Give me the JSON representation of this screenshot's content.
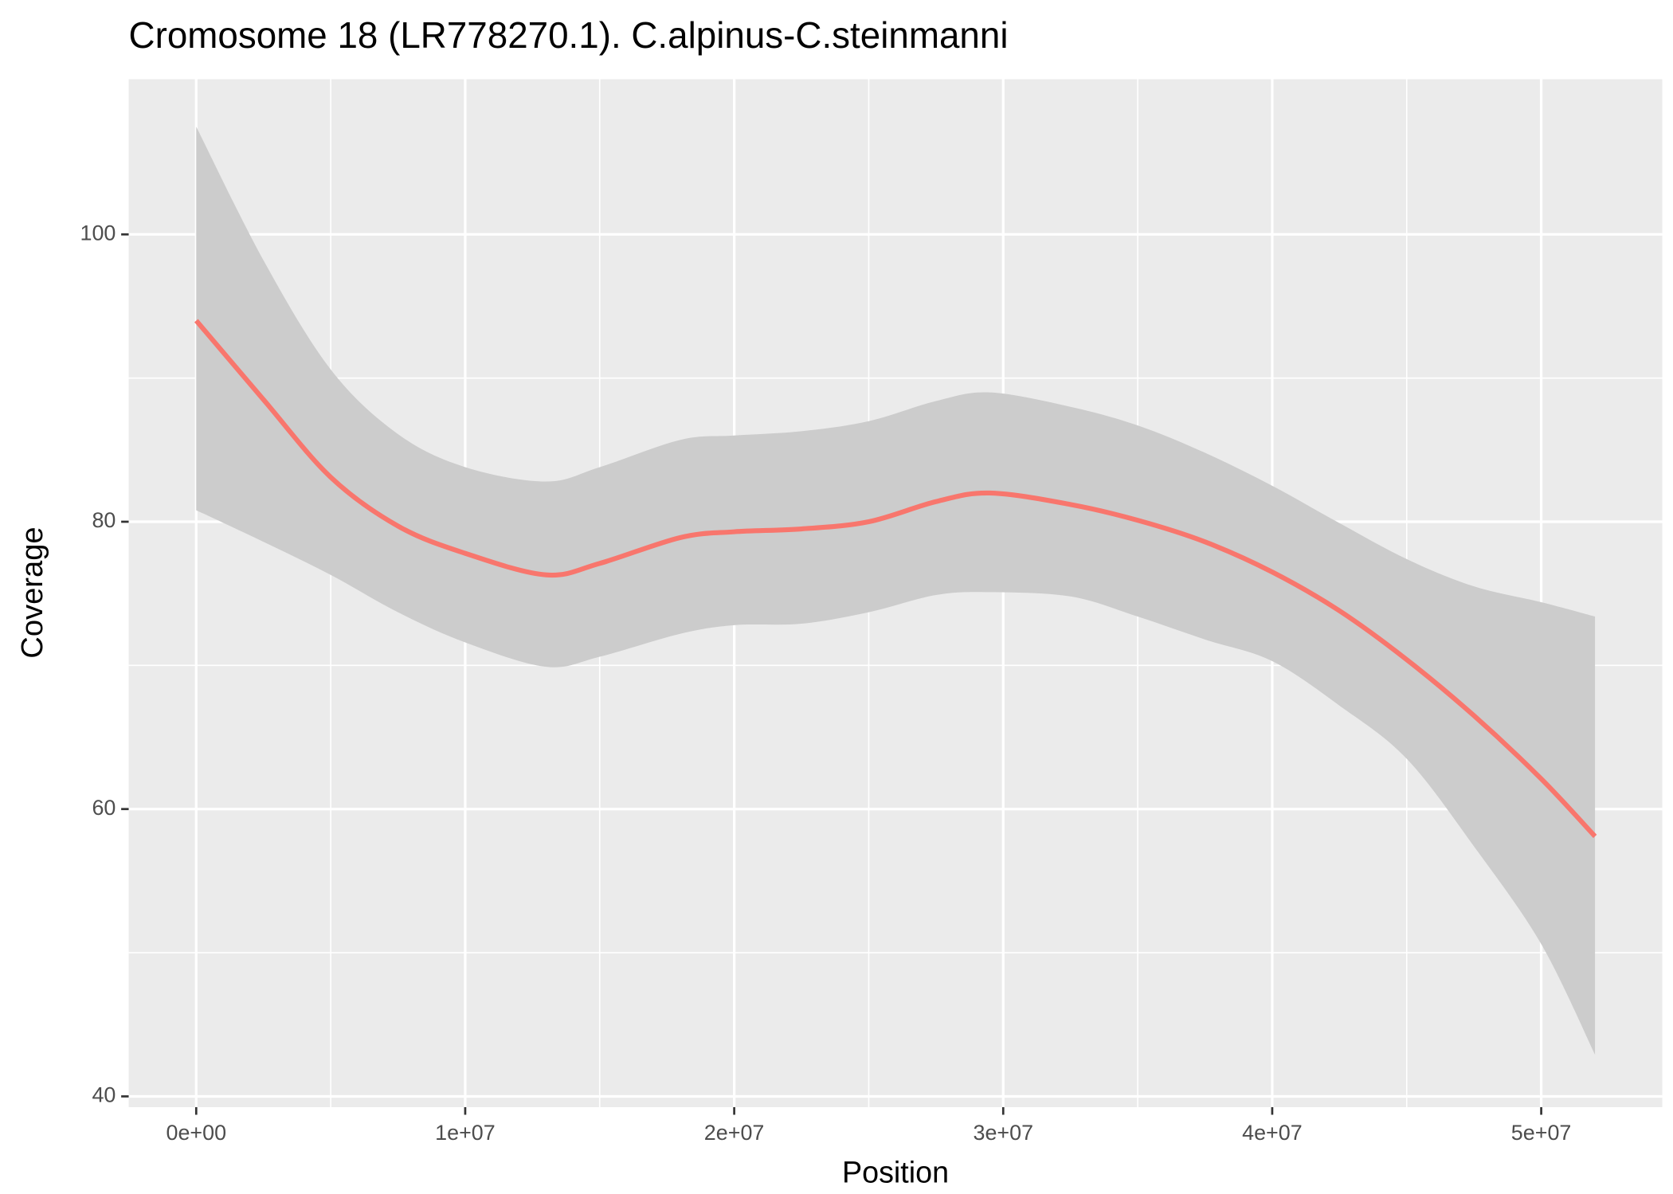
{
  "chart_data": {
    "type": "smooth",
    "title": "Cromosome 18 (LR778270.1). C.alpinus-C.steinmanni",
    "x_label": "Position",
    "y_label": "Coverage",
    "color": "#f8766d",
    "band_color": "#cccccc",
    "background": "#ebebeb",
    "grid": true,
    "xlim": [
      -2510000,
      54500000
    ],
    "ylim": [
      39.25,
      110.8
    ],
    "xticks": [
      {
        "value": 0,
        "label": "0e+00"
      },
      {
        "value": 10000000,
        "label": "1e+07"
      },
      {
        "value": 20000000,
        "label": "2e+07"
      },
      {
        "value": 30000000,
        "label": "3e+07"
      },
      {
        "value": 40000000,
        "label": "4e+07"
      },
      {
        "value": 50000000,
        "label": "5e+07"
      }
    ],
    "yticks": [
      40,
      60,
      80,
      100
    ],
    "x_minor_ticks": [
      5000000,
      15000000,
      25000000,
      35000000,
      45000000
    ],
    "y_minor_ticks": [
      50,
      70,
      90
    ],
    "x": [
      0,
      2500000,
      5000000,
      7500000,
      10000000,
      13000000,
      15000000,
      18000000,
      20000000,
      22500000,
      25000000,
      27500000,
      29500000,
      32500000,
      35000000,
      37500000,
      40000000,
      42500000,
      45000000,
      47500000,
      50000000,
      52000000
    ],
    "values": [
      94.0,
      88.5,
      83.1,
      79.7,
      77.8,
      76.3,
      77.1,
      78.9,
      79.3,
      79.5,
      80.0,
      81.4,
      82.0,
      81.2,
      80.1,
      78.6,
      76.5,
      73.8,
      70.4,
      66.5,
      62.1,
      58.1
    ],
    "upper": [
      107.5,
      98.2,
      90.6,
      86.1,
      83.8,
      82.8,
      83.8,
      85.7,
      86.0,
      86.3,
      87.0,
      88.4,
      89.0,
      88.0,
      86.7,
      84.8,
      82.5,
      79.9,
      77.4,
      75.5,
      74.4,
      73.4
    ],
    "lower": [
      80.8,
      78.6,
      76.3,
      73.7,
      71.6,
      69.9,
      70.6,
      72.2,
      72.8,
      72.9,
      73.7,
      74.9,
      75.1,
      74.8,
      73.4,
      71.8,
      70.3,
      67.2,
      63.5,
      57.4,
      50.6,
      42.9
    ]
  }
}
